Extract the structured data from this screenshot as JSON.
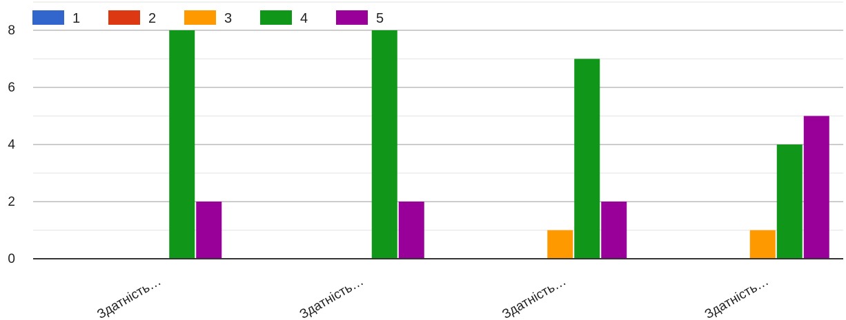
{
  "chart_data": {
    "type": "bar",
    "categories": [
      "Здатність…",
      "Здатність…",
      "Здатність…",
      "Здатність…"
    ],
    "series": [
      {
        "name": "1",
        "values": [
          0,
          0,
          0,
          0
        ]
      },
      {
        "name": "2",
        "values": [
          0,
          0,
          0,
          0
        ]
      },
      {
        "name": "3",
        "values": [
          0,
          0,
          1,
          1
        ]
      },
      {
        "name": "4",
        "values": [
          8,
          8,
          7,
          4
        ]
      },
      {
        "name": "5",
        "values": [
          2,
          2,
          2,
          5
        ]
      }
    ],
    "ylim": [
      0,
      8
    ],
    "yticks": [
      "0",
      "2",
      "4",
      "6",
      "8"
    ],
    "grid": true,
    "legend_position": "top-left",
    "colors": [
      "#3366cc",
      "#dc3912",
      "#ff9900",
      "#109618",
      "#990099"
    ]
  }
}
